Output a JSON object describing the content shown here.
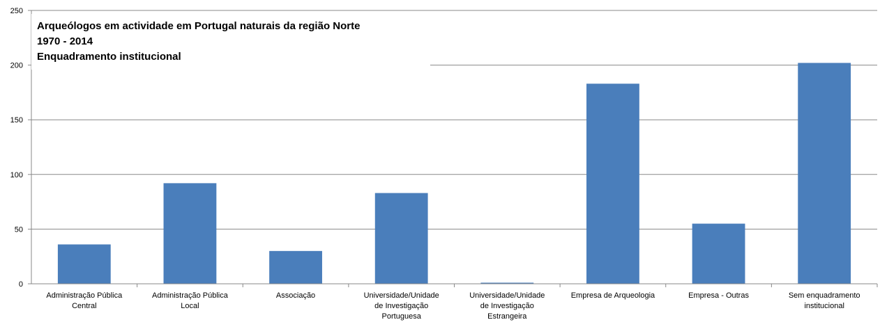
{
  "chart_data": {
    "type": "bar",
    "title_lines": [
      "Arqueólogos em actividade em Portugal naturais da região Norte",
      "1970 - 2014",
      "Enquadramento institucional"
    ],
    "categories": [
      "Administração Pública Central",
      "Administração Pública Local",
      "Associação",
      "Universidade/Unidade de Investigação Portuguesa",
      "Universidade/Unidade de Investigação Estrangeira",
      "Empresa de Arqueologia",
      "Empresa - Outras",
      "Sem enquadramento institucional"
    ],
    "values": [
      36,
      92,
      30,
      83,
      1,
      183,
      55,
      202
    ],
    "color": "#4a7ebb",
    "ylim": [
      0,
      250
    ],
    "yticks": [
      0,
      50,
      100,
      150,
      200,
      250
    ],
    "grid": true
  }
}
